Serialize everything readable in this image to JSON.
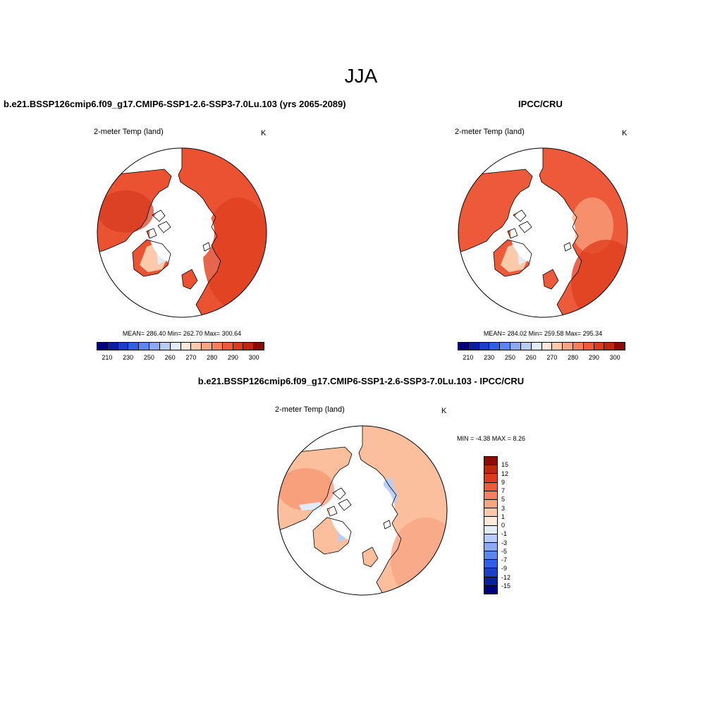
{
  "page_title": "JJA",
  "panels": [
    {
      "title": "b.e21.BSSP126cmip6.f09_g17.CMIP6-SSP1-2.6-SSP3-7.0Lu.103 (yrs 2065-2089)",
      "variable": "2-meter Temp (land)",
      "units": "K",
      "stats": "MEAN= 286.40   Min= 262.70   Max= 300.64"
    },
    {
      "title": "IPCC/CRU",
      "variable": "2-meter Temp (land)",
      "units": "K",
      "stats": "MEAN= 284.02   Min= 259.58   Max= 295.34"
    },
    {
      "title": "b.e21.BSSP126cmip6.f09_g17.CMIP6-SSP1-2.6-SSP3-7.0Lu.103 - IPCC/CRU",
      "variable": "2-meter Temp (land)",
      "units": "K",
      "stats": "MIN =   -4.38 MAX =    8.26"
    }
  ],
  "abs_colorbar": {
    "colors": [
      "#00007f",
      "#0a1fa0",
      "#1a3fc8",
      "#2f5fe6",
      "#5a86f0",
      "#8aaaf5",
      "#b7cdf8",
      "#e2ecfb",
      "#fde8d9",
      "#fcc9aa",
      "#f9a582",
      "#f57f5c",
      "#ef5a38",
      "#e03a1e",
      "#c3240f",
      "#8c0b05"
    ],
    "labels": [
      "210",
      "230",
      "250",
      "260",
      "270",
      "280",
      "290",
      "300"
    ]
  },
  "diff_colorbar": {
    "colors": [
      "#8c0b05",
      "#c3240f",
      "#e03a1e",
      "#ef5a38",
      "#f57f5c",
      "#f9a582",
      "#fcc9aa",
      "#fde8d9",
      "#e2ecfb",
      "#b7cdf8",
      "#8aaaf5",
      "#5a86f0",
      "#2f5fe6",
      "#1a3fc8",
      "#0a1fa0",
      "#00007f"
    ],
    "labels": [
      "15",
      "12",
      "9",
      "7",
      "5",
      "3",
      "1",
      "0",
      "-1",
      "-3",
      "-5",
      "-7",
      "-9",
      "-12",
      "-15"
    ]
  }
}
